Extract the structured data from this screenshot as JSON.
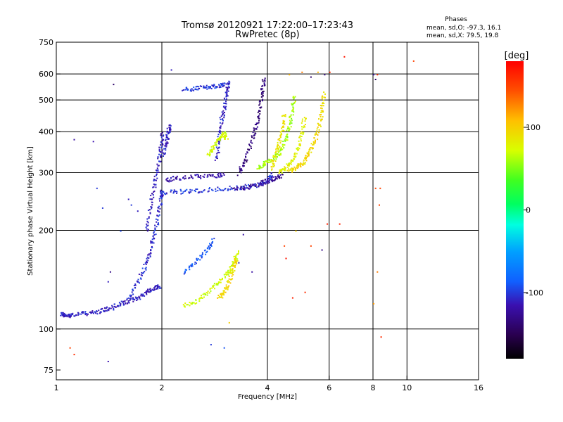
{
  "chart_data": {
    "type": "scatter",
    "title": "Tromsø 20120921 17:22:00–17:23:43",
    "subtitle": "RwPretec (8p)",
    "phase_stats": {
      "heading": "Phases",
      "o_line": "mean, sd,O:  -97.3, 16.1",
      "x_line": "mean, sd,X:  79.5, 19.8"
    },
    "xlabel": "Frequency [MHz]",
    "ylabel": "Stationary phase Virtual Height [km]",
    "x_scale": "log",
    "y_scale": "log",
    "xlim": [
      1,
      16
    ],
    "ylim": [
      70,
      750
    ],
    "x_ticks": [
      1,
      2,
      4,
      6,
      8,
      10,
      16
    ],
    "y_ticks": [
      75,
      100,
      200,
      300,
      400,
      500,
      600,
      750
    ],
    "x_grid": [
      2,
      4,
      6,
      8,
      10
    ],
    "y_grid": [
      100,
      200,
      300,
      400,
      500,
      600
    ],
    "colorbar": {
      "label": "[deg]",
      "range": [
        -180,
        180
      ],
      "ticks": [
        100,
        0,
        -100
      ]
    },
    "traces": [
      {
        "phase": -110,
        "points": [
          [
            1.03,
            112
          ],
          [
            1.05,
            110
          ],
          [
            1.1,
            111
          ],
          [
            1.2,
            112
          ],
          [
            1.3,
            113
          ],
          [
            1.4,
            116
          ],
          [
            1.5,
            119
          ],
          [
            1.6,
            122
          ],
          [
            1.7,
            125
          ],
          [
            1.8,
            130
          ],
          [
            1.9,
            134
          ],
          [
            1.97,
            136
          ]
        ]
      },
      {
        "phase": -105,
        "points": [
          [
            1.6,
            125
          ],
          [
            1.7,
            140
          ],
          [
            1.8,
            158
          ],
          [
            1.85,
            175
          ],
          [
            1.9,
            195
          ],
          [
            1.95,
            225
          ],
          [
            1.98,
            255
          ],
          [
            2.0,
            265
          ]
        ]
      },
      {
        "phase": -110,
        "points": [
          [
            1.8,
            200
          ],
          [
            1.85,
            240
          ],
          [
            1.9,
            280
          ],
          [
            1.95,
            320
          ],
          [
            1.98,
            360
          ],
          [
            2.0,
            400
          ]
        ]
      },
      {
        "phase": -100,
        "points": [
          [
            2.05,
            262
          ],
          [
            2.3,
            264
          ],
          [
            2.6,
            266
          ],
          [
            3.0,
            269
          ],
          [
            3.4,
            272
          ],
          [
            3.8,
            277
          ],
          [
            4.0,
            285
          ],
          [
            4.1,
            300
          ]
        ]
      },
      {
        "phase": -118,
        "points": [
          [
            2.05,
            286
          ],
          [
            2.2,
            290
          ],
          [
            2.5,
            293
          ],
          [
            2.8,
            295
          ],
          [
            3.0,
            297
          ]
        ]
      },
      {
        "phase": -110,
        "points": [
          [
            2.0,
            340
          ],
          [
            2.05,
            370
          ],
          [
            2.08,
            400
          ],
          [
            2.1,
            420
          ]
        ]
      },
      {
        "phase": -125,
        "points": [
          [
            3.2,
            268
          ],
          [
            3.5,
            272
          ],
          [
            3.8,
            278
          ],
          [
            4.0,
            285
          ],
          [
            4.2,
            290
          ],
          [
            4.4,
            295
          ]
        ]
      },
      {
        "phase": -135,
        "points": [
          [
            3.3,
            300
          ],
          [
            3.45,
            330
          ],
          [
            3.6,
            380
          ],
          [
            3.7,
            420
          ],
          [
            3.8,
            480
          ],
          [
            3.85,
            540
          ],
          [
            3.9,
            590
          ]
        ]
      },
      {
        "phase": -108,
        "points": [
          [
            2.85,
            330
          ],
          [
            2.9,
            380
          ],
          [
            2.95,
            440
          ],
          [
            3.0,
            480
          ],
          [
            3.05,
            530
          ],
          [
            3.1,
            570
          ]
        ]
      },
      {
        "phase": -100,
        "points": [
          [
            2.3,
            540
          ],
          [
            2.5,
            545
          ],
          [
            2.7,
            550
          ],
          [
            2.9,
            555
          ],
          [
            3.05,
            560
          ]
        ]
      },
      {
        "phase": 70,
        "points": [
          [
            2.7,
            340
          ],
          [
            2.8,
            360
          ],
          [
            2.9,
            380
          ],
          [
            3.0,
            400
          ],
          [
            3.05,
            380
          ]
        ]
      },
      {
        "phase": 60,
        "points": [
          [
            3.75,
            310
          ],
          [
            3.9,
            320
          ],
          [
            4.1,
            330
          ],
          [
            4.3,
            345
          ],
          [
            4.5,
            380
          ],
          [
            4.6,
            420
          ],
          [
            4.7,
            470
          ],
          [
            4.75,
            520
          ]
        ]
      },
      {
        "phase": 80,
        "points": [
          [
            4.3,
            300
          ],
          [
            4.5,
            310
          ],
          [
            4.7,
            330
          ],
          [
            4.9,
            360
          ],
          [
            5.0,
            400
          ],
          [
            5.1,
            450
          ]
        ]
      },
      {
        "phase": 95,
        "points": [
          [
            4.6,
            305
          ],
          [
            4.8,
            312
          ],
          [
            5.0,
            320
          ],
          [
            5.2,
            340
          ],
          [
            5.4,
            370
          ],
          [
            5.6,
            420
          ],
          [
            5.7,
            470
          ],
          [
            5.8,
            530
          ]
        ]
      },
      {
        "phase": 88,
        "points": [
          [
            4.1,
            310
          ],
          [
            4.2,
            340
          ],
          [
            4.3,
            370
          ],
          [
            4.4,
            410
          ],
          [
            4.45,
            460
          ]
        ]
      },
      {
        "phase": 70,
        "points": [
          [
            2.3,
            118
          ],
          [
            2.5,
            122
          ],
          [
            2.7,
            130
          ],
          [
            2.9,
            140
          ],
          [
            3.1,
            150
          ],
          [
            3.2,
            160
          ],
          [
            3.3,
            175
          ]
        ]
      },
      {
        "phase": -90,
        "points": [
          [
            2.3,
            150
          ],
          [
            2.5,
            162
          ],
          [
            2.7,
            175
          ],
          [
            2.8,
            190
          ]
        ]
      },
      {
        "phase": 95,
        "points": [
          [
            2.9,
            125
          ],
          [
            3.0,
            130
          ],
          [
            3.1,
            140
          ],
          [
            3.2,
            155
          ],
          [
            3.25,
            165
          ]
        ]
      }
    ],
    "scattered_points": [
      [
        1.12,
        380,
        -120
      ],
      [
        1.27,
        375,
        -115
      ],
      [
        1.3,
        270,
        -100
      ],
      [
        1.35,
        235,
        -100
      ],
      [
        1.45,
        560,
        -140
      ],
      [
        1.52,
        200,
        -95
      ],
      [
        1.42,
        150,
        -130
      ],
      [
        1.4,
        140,
        -110
      ],
      [
        1.45,
        115,
        -100
      ],
      [
        1.6,
        250,
        -110
      ],
      [
        1.63,
        240,
        -100
      ],
      [
        1.7,
        230,
        -110
      ],
      [
        1.09,
        88,
        150
      ],
      [
        1.12,
        84,
        160
      ],
      [
        1.4,
        80,
        -115
      ],
      [
        2.12,
        620,
        -110
      ],
      [
        2.75,
        90,
        -100
      ],
      [
        3.0,
        88,
        -90
      ],
      [
        3.1,
        105,
        100
      ],
      [
        4.6,
        600,
        110
      ],
      [
        5.0,
        610,
        130
      ],
      [
        5.3,
        590,
        -140
      ],
      [
        5.55,
        610,
        110
      ],
      [
        5.8,
        600,
        -130
      ],
      [
        6.0,
        610,
        160
      ],
      [
        6.4,
        210,
        165
      ],
      [
        6.6,
        680,
        170
      ],
      [
        8.0,
        600,
        -120
      ],
      [
        8.1,
        580,
        -140
      ],
      [
        8.2,
        600,
        160
      ],
      [
        8.1,
        270,
        150
      ],
      [
        8.35,
        270,
        150
      ],
      [
        8.3,
        240,
        150
      ],
      [
        8.2,
        150,
        130
      ],
      [
        8.0,
        120,
        120
      ],
      [
        8.4,
        95,
        160
      ],
      [
        10.4,
        660,
        150
      ],
      [
        4.45,
        180,
        150
      ],
      [
        4.5,
        165,
        170
      ],
      [
        4.8,
        200,
        100
      ],
      [
        5.3,
        180,
        150
      ],
      [
        5.7,
        175,
        -130
      ],
      [
        4.7,
        125,
        165
      ],
      [
        5.1,
        130,
        160
      ],
      [
        3.3,
        160,
        -110
      ],
      [
        3.6,
        150,
        -120
      ],
      [
        5.9,
        210,
        165
      ],
      [
        3.4,
        195,
        -120
      ]
    ]
  }
}
